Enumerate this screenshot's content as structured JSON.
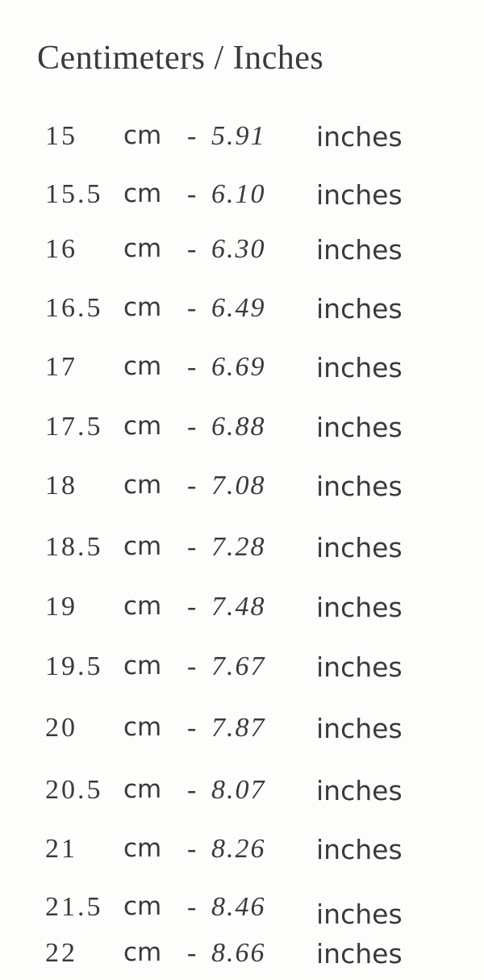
{
  "title": "Centimeters / Inches",
  "unit_cm": "cm",
  "separator": "-",
  "unit_in": "inches",
  "rows": [
    {
      "cm": "15",
      "inches": "5.91"
    },
    {
      "cm": "15.5",
      "inches": "6.10"
    },
    {
      "cm": "16",
      "inches": "6.30"
    },
    {
      "cm": "16.5",
      "inches": "6.49"
    },
    {
      "cm": "17",
      "inches": "6.69"
    },
    {
      "cm": "17.5",
      "inches": "6.88"
    },
    {
      "cm": "18",
      "inches": "7.08"
    },
    {
      "cm": "18.5",
      "inches": "7.28"
    },
    {
      "cm": "19",
      "inches": "7.48"
    },
    {
      "cm": "19.5",
      "inches": "7.67"
    },
    {
      "cm": "20",
      "inches": "7.87"
    },
    {
      "cm": "20.5",
      "inches": "8.07"
    },
    {
      "cm": "21",
      "inches": "8.26"
    },
    {
      "cm": "21.5",
      "inches": "8.46"
    },
    {
      "cm": "22",
      "inches": "8.66"
    }
  ]
}
